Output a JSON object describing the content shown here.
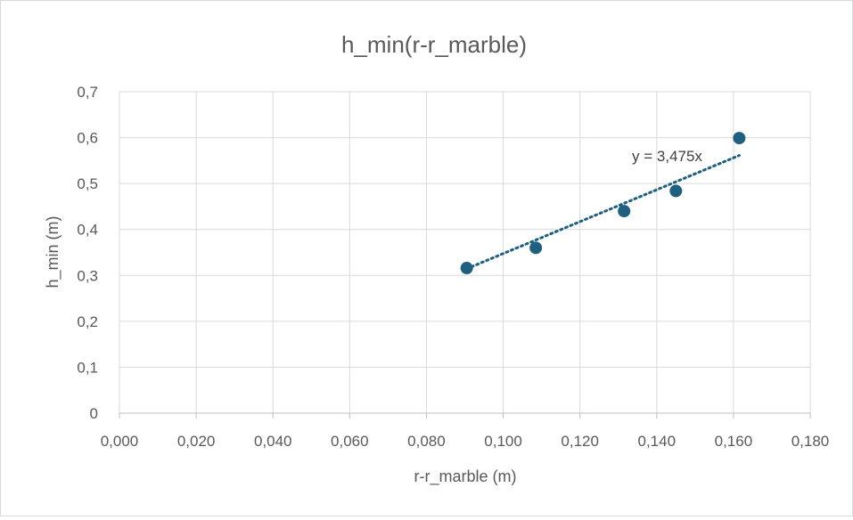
{
  "chart_data": {
    "type": "scatter",
    "title": "h_min(r-r_marble)",
    "xlabel": "r-r_marble  (m)",
    "ylabel": "h_min (m)",
    "xlim": [
      0,
      0.18
    ],
    "ylim": [
      0,
      0.7
    ],
    "x_ticks": [
      "0,000",
      "0,020",
      "0,040",
      "0,060",
      "0,080",
      "0,100",
      "0,120",
      "0,140",
      "0,160",
      "0,180"
    ],
    "y_ticks": [
      "0",
      "0,1",
      "0,2",
      "0,3",
      "0,4",
      "0,5",
      "0,6",
      "0,7"
    ],
    "grid": true,
    "series": [
      {
        "x": [
          0.0905,
          0.1085,
          0.1315,
          0.145,
          0.1615
        ],
        "y": [
          0.316,
          0.36,
          0.44,
          0.484,
          0.599
        ],
        "color": "#1f5f7f"
      }
    ],
    "trendline": {
      "type": "linear",
      "slope": 3.475,
      "intercept": 0,
      "x_range": [
        0.0905,
        0.1615
      ],
      "label": "y = 3,475x",
      "color": "#1f5f7f"
    }
  }
}
